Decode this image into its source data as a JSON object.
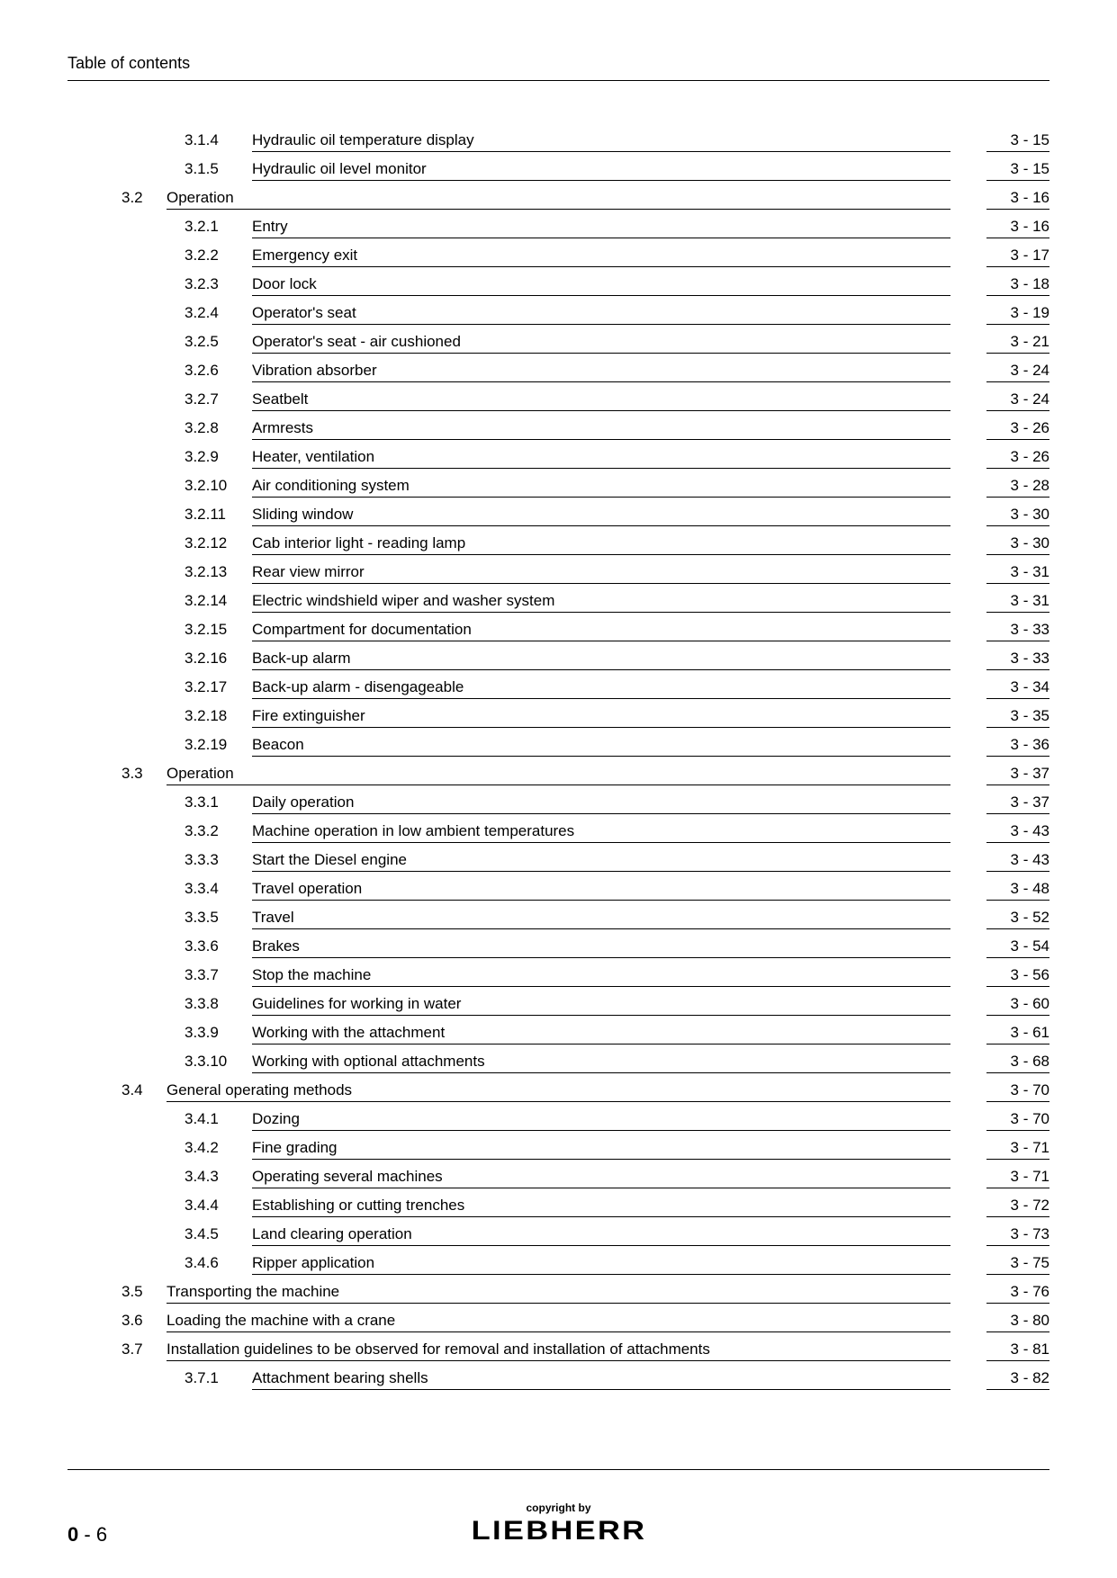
{
  "header": "Table of contents",
  "footer": {
    "copyright": "copyright by",
    "brand": "LIEBHERR",
    "page_prefix": "0",
    "page_sep": " - ",
    "page_num": "6"
  },
  "entries": [
    {
      "section": "",
      "sub": "3.1.4",
      "title": "Hydraulic oil temperature display",
      "page": "3 - 15"
    },
    {
      "section": "",
      "sub": "3.1.5",
      "title": "Hydraulic oil level monitor",
      "page": "3 - 15"
    },
    {
      "section": "3.2",
      "sub": "",
      "title": "Operation",
      "page": "3 - 16"
    },
    {
      "section": "",
      "sub": "3.2.1",
      "title": "Entry",
      "page": "3 - 16"
    },
    {
      "section": "",
      "sub": "3.2.2",
      "title": "Emergency exit",
      "page": "3 - 17"
    },
    {
      "section": "",
      "sub": "3.2.3",
      "title": "Door lock",
      "page": "3 - 18"
    },
    {
      "section": "",
      "sub": "3.2.4",
      "title": "Operator's seat",
      "page": "3 - 19"
    },
    {
      "section": "",
      "sub": "3.2.5",
      "title": "Operator's seat - air cushioned",
      "page": "3 - 21"
    },
    {
      "section": "",
      "sub": "3.2.6",
      "title": "Vibration absorber",
      "page": "3 - 24"
    },
    {
      "section": "",
      "sub": "3.2.7",
      "title": "Seatbelt",
      "page": "3 - 24"
    },
    {
      "section": "",
      "sub": "3.2.8",
      "title": "Armrests",
      "page": "3 - 26"
    },
    {
      "section": "",
      "sub": "3.2.9",
      "title": "Heater, ventilation",
      "page": "3 - 26"
    },
    {
      "section": "",
      "sub": "3.2.10",
      "title": "Air conditioning system",
      "page": "3 - 28"
    },
    {
      "section": "",
      "sub": "3.2.11",
      "title": "Sliding window",
      "page": "3 - 30"
    },
    {
      "section": "",
      "sub": "3.2.12",
      "title": "Cab interior light - reading lamp",
      "page": "3 - 30"
    },
    {
      "section": "",
      "sub": "3.2.13",
      "title": "Rear view mirror",
      "page": "3 - 31"
    },
    {
      "section": "",
      "sub": "3.2.14",
      "title": "Electric windshield wiper and washer system",
      "page": "3 - 31"
    },
    {
      "section": "",
      "sub": "3.2.15",
      "title": "Compartment for documentation",
      "page": "3 - 33"
    },
    {
      "section": "",
      "sub": "3.2.16",
      "title": "Back-up alarm",
      "page": "3 - 33"
    },
    {
      "section": "",
      "sub": "3.2.17",
      "title": "Back-up alarm - disengageable",
      "page": "3 - 34"
    },
    {
      "section": "",
      "sub": "3.2.18",
      "title": "Fire extinguisher",
      "page": "3 - 35"
    },
    {
      "section": "",
      "sub": "3.2.19",
      "title": "Beacon",
      "page": "3 - 36"
    },
    {
      "section": "3.3",
      "sub": "",
      "title": "Operation",
      "page": "3 - 37"
    },
    {
      "section": "",
      "sub": "3.3.1",
      "title": "Daily operation",
      "page": "3 - 37"
    },
    {
      "section": "",
      "sub": "3.3.2",
      "title": "Machine operation in low ambient temperatures",
      "page": "3 - 43"
    },
    {
      "section": "",
      "sub": "3.3.3",
      "title": "Start the Diesel engine",
      "page": "3 - 43"
    },
    {
      "section": "",
      "sub": "3.3.4",
      "title": "Travel operation",
      "page": "3 - 48"
    },
    {
      "section": "",
      "sub": "3.3.5",
      "title": "Travel",
      "page": "3 - 52"
    },
    {
      "section": "",
      "sub": "3.3.6",
      "title": "Brakes",
      "page": "3 - 54"
    },
    {
      "section": "",
      "sub": "3.3.7",
      "title": "Stop the machine",
      "page": "3 - 56"
    },
    {
      "section": "",
      "sub": "3.3.8",
      "title": "Guidelines for working in water",
      "page": "3 - 60"
    },
    {
      "section": "",
      "sub": "3.3.9",
      "title": "Working with the attachment",
      "page": "3 - 61"
    },
    {
      "section": "",
      "sub": "3.3.10",
      "title": "Working with optional attachments",
      "page": "3 - 68"
    },
    {
      "section": "3.4",
      "sub": "",
      "title": "General operating methods",
      "page": "3 - 70"
    },
    {
      "section": "",
      "sub": "3.4.1",
      "title": "Dozing",
      "page": "3 - 70"
    },
    {
      "section": "",
      "sub": "3.4.2",
      "title": "Fine grading",
      "page": "3 - 71"
    },
    {
      "section": "",
      "sub": "3.4.3",
      "title": "Operating several machines",
      "page": "3 - 71"
    },
    {
      "section": "",
      "sub": "3.4.4",
      "title": "Establishing or cutting trenches",
      "page": "3 - 72"
    },
    {
      "section": "",
      "sub": "3.4.5",
      "title": "Land clearing operation",
      "page": "3 - 73"
    },
    {
      "section": "",
      "sub": "3.4.6",
      "title": "Ripper application",
      "page": "3 - 75"
    },
    {
      "section": "3.5",
      "sub": "",
      "title": "Transporting the machine",
      "page": "3 - 76"
    },
    {
      "section": "3.6",
      "sub": "",
      "title": "Loading the machine with a crane",
      "page": "3 - 80"
    },
    {
      "section": "3.7",
      "sub": "",
      "title": "Installation guidelines to be observed for removal and installation of attachments",
      "page": "3 - 81"
    },
    {
      "section": "",
      "sub": "3.7.1",
      "title": "Attachment bearing shells",
      "page": "3 - 82"
    }
  ]
}
